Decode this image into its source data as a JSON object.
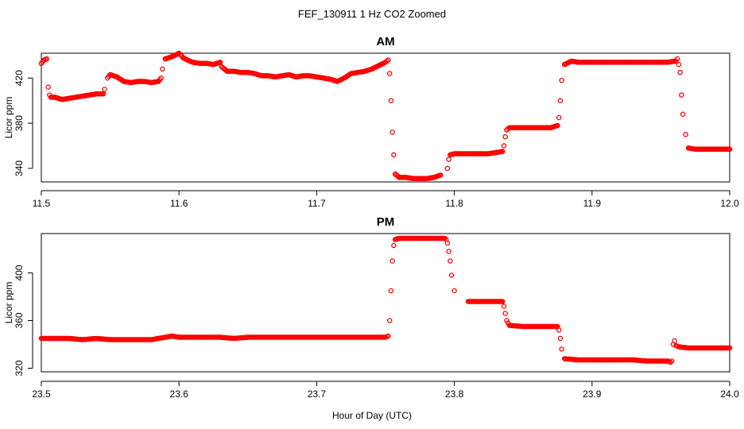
{
  "figure": {
    "title": "FEF_130911  1 Hz CO2 Zoomed",
    "xlabel": "Hour of Day (UTC)"
  },
  "colors": {
    "points": "#ff0000",
    "axes": "#000000",
    "background": "#ffffff"
  },
  "chart_data": [
    {
      "type": "scatter",
      "title": "AM",
      "xlabel": "",
      "ylabel": "Licor ppm",
      "xlim": [
        11.5,
        12.0
      ],
      "ylim": [
        328,
        442
      ],
      "xticks": [
        11.5,
        11.6,
        11.7,
        11.8,
        11.9,
        12.0
      ],
      "xtick_labels": [
        "11.5",
        "11.6",
        "11.7",
        "11.8",
        "11.9",
        "12.0"
      ],
      "yticks": [
        340,
        380,
        420
      ],
      "ytick_labels": [
        "340",
        "380",
        "420"
      ],
      "marker": "open-circle",
      "x": [
        11.5,
        11.502,
        11.504,
        11.505,
        11.506,
        11.507,
        11.51,
        11.515,
        11.52,
        11.525,
        11.53,
        11.535,
        11.54,
        11.545,
        11.546,
        11.548,
        11.55,
        11.555,
        11.56,
        11.565,
        11.57,
        11.575,
        11.58,
        11.585,
        11.587,
        11.588,
        11.59,
        11.595,
        11.6,
        11.601,
        11.603,
        11.606,
        11.61,
        11.615,
        11.62,
        11.625,
        11.63,
        11.631,
        11.635,
        11.64,
        11.645,
        11.65,
        11.655,
        11.66,
        11.665,
        11.67,
        11.675,
        11.68,
        11.685,
        11.69,
        11.695,
        11.7,
        11.705,
        11.71,
        11.715,
        11.72,
        11.725,
        11.73,
        11.735,
        11.74,
        11.745,
        11.75,
        11.752,
        11.753,
        11.754,
        11.755,
        11.756,
        11.757,
        11.76,
        11.765,
        11.77,
        11.775,
        11.78,
        11.785,
        11.79,
        11.795,
        11.796,
        11.797,
        11.8,
        11.805,
        11.81,
        11.815,
        11.82,
        11.825,
        11.83,
        11.835,
        11.836,
        11.837,
        11.838,
        11.84,
        11.845,
        11.85,
        11.855,
        11.86,
        11.865,
        11.87,
        11.875,
        11.876,
        11.877,
        11.878,
        11.88,
        11.885,
        11.89,
        11.9,
        11.91,
        11.92,
        11.93,
        11.94,
        11.95,
        11.955,
        11.96,
        11.961,
        11.962,
        11.963,
        11.964,
        11.965,
        11.966,
        11.968,
        11.97,
        11.975,
        11.98,
        11.985,
        11.99,
        11.995,
        12.0
      ],
      "y": [
        433,
        436,
        437,
        412,
        405,
        403,
        403,
        401,
        402,
        403,
        404,
        405,
        406,
        406,
        410,
        420,
        423,
        421,
        417,
        416,
        417,
        417,
        416,
        417,
        420,
        428,
        437,
        439,
        442,
        441,
        438,
        436,
        434,
        433,
        433,
        432,
        434,
        430,
        426,
        426,
        425,
        425,
        424,
        422,
        422,
        421,
        422,
        423,
        421,
        422,
        422,
        421,
        420,
        419,
        417,
        420,
        424,
        425,
        426,
        428,
        431,
        434,
        436,
        424,
        400,
        372,
        352,
        335,
        332,
        332,
        331,
        331,
        331,
        332,
        334,
        340,
        348,
        352,
        353,
        353,
        353,
        353,
        353,
        353,
        354,
        355,
        360,
        368,
        374,
        376,
        376,
        376,
        376,
        376,
        376,
        376,
        378,
        385,
        400,
        418,
        432,
        435,
        434,
        434,
        434,
        434,
        434,
        434,
        434,
        434,
        435,
        435,
        437,
        432,
        425,
        405,
        388,
        370,
        358,
        357,
        357,
        357,
        357,
        357,
        357
      ]
    },
    {
      "type": "scatter",
      "title": "PM",
      "xlabel": "",
      "ylabel": "Licor ppm",
      "xlim": [
        23.5,
        24.0
      ],
      "ylim": [
        317,
        433
      ],
      "xticks": [
        23.5,
        23.6,
        23.7,
        23.8,
        23.9,
        24.0
      ],
      "xtick_labels": [
        "23.5",
        "23.6",
        "23.7",
        "23.8",
        "23.9",
        "24.0"
      ],
      "yticks": [
        320,
        360,
        400
      ],
      "ytick_labels": [
        "320",
        "360",
        "400"
      ],
      "marker": "open-circle",
      "x": [
        23.5,
        23.51,
        23.52,
        23.53,
        23.54,
        23.55,
        23.56,
        23.57,
        23.58,
        23.585,
        23.59,
        23.595,
        23.6,
        23.61,
        23.62,
        23.63,
        23.64,
        23.65,
        23.66,
        23.67,
        23.68,
        23.69,
        23.7,
        23.71,
        23.72,
        23.73,
        23.74,
        23.75,
        23.752,
        23.753,
        23.754,
        23.755,
        23.756,
        23.757,
        23.76,
        23.765,
        23.77,
        23.775,
        23.78,
        23.785,
        23.79,
        23.793,
        23.794,
        23.795,
        23.796,
        23.797,
        23.798,
        23.8,
        23.81,
        23.82,
        23.83,
        23.835,
        23.836,
        23.837,
        23.838,
        23.84,
        23.85,
        23.86,
        23.87,
        23.875,
        23.876,
        23.877,
        23.878,
        23.88,
        23.89,
        23.9,
        23.91,
        23.92,
        23.93,
        23.94,
        23.95,
        23.955,
        23.957,
        23.958,
        23.959,
        23.96,
        23.961,
        23.963,
        23.97,
        23.98,
        23.99,
        24.0
      ],
      "y": [
        345,
        345,
        345,
        344,
        345,
        344,
        344,
        344,
        344,
        345,
        346,
        347,
        346,
        346,
        346,
        346,
        345,
        346,
        346,
        346,
        346,
        346,
        346,
        346,
        346,
        346,
        346,
        346,
        347,
        360,
        385,
        410,
        423,
        428,
        429,
        429,
        429,
        429,
        429,
        429,
        429,
        429,
        428,
        425,
        418,
        410,
        398,
        385,
        376,
        376,
        376,
        376,
        372,
        366,
        360,
        356,
        355,
        355,
        355,
        355,
        352,
        345,
        336,
        328,
        327,
        327,
        327,
        327,
        327,
        326,
        326,
        326,
        325,
        326,
        340,
        343,
        339,
        338,
        337,
        337,
        337,
        337
      ]
    }
  ]
}
